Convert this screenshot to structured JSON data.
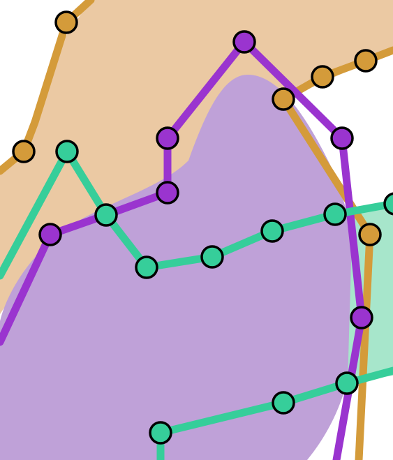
{
  "colors": {
    "background": "#ffffff",
    "orange_line": "#D49B3A",
    "orange_area": "#EBC9A3",
    "purple_line": "#9A34CF",
    "purple_area": "#BFA1D8",
    "green_line": "#36CE9A",
    "green_area": "#A7E6CB",
    "node_outline": "#000000"
  }
}
